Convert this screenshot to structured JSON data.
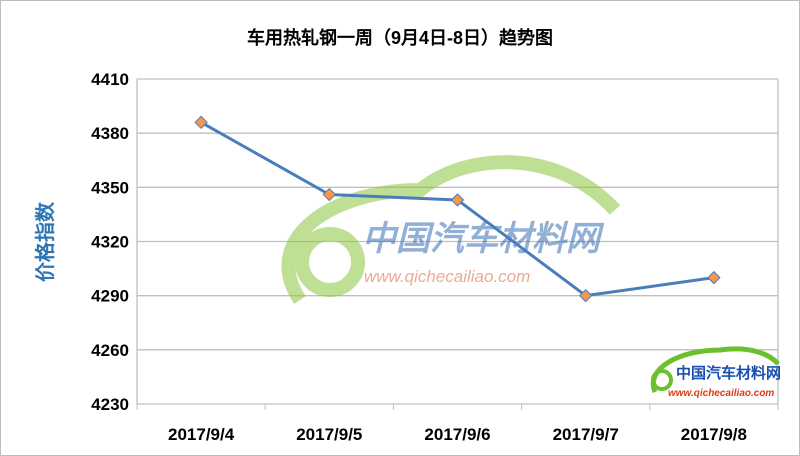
{
  "chart_data": {
    "type": "line",
    "title": "车用热轧钢一周（9月4日-8日）趋势图",
    "xlabel": "",
    "ylabel": "价格指数",
    "categories": [
      "2017/9/4",
      "2017/9/5",
      "2017/9/6",
      "2017/9/7",
      "2017/9/8"
    ],
    "values": [
      4386,
      4346,
      4343,
      4290,
      4300
    ],
    "ylim": [
      4230,
      4410
    ],
    "yticks": [
      4230,
      4260,
      4290,
      4320,
      4350,
      4380,
      4410
    ],
    "grid": true,
    "legend": "none",
    "colors": {
      "line": "#4a7ebb",
      "marker": "#f79646",
      "ylabel": "#2e75b6"
    }
  },
  "watermark": {
    "name": "中国汽车材料网",
    "url": "www.qichecailiao.com"
  }
}
